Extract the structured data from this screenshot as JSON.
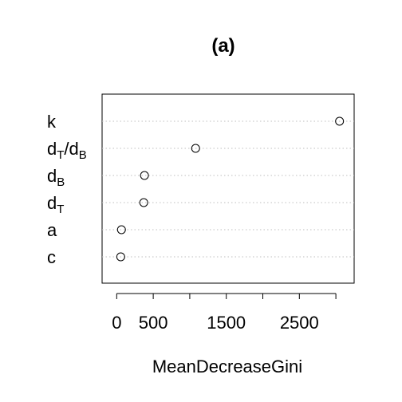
{
  "chart_data": {
    "type": "scatter",
    "subtype": "dotchart",
    "title": "(a)",
    "xlabel": "MeanDecreaseGini",
    "ylabel": "",
    "xlim": [
      -200,
      3250
    ],
    "xticks": [
      0,
      500,
      1000,
      1500,
      2000,
      2500,
      3000
    ],
    "xtick_labels": [
      "0",
      "500",
      "",
      "1500",
      "",
      "2500",
      ""
    ],
    "grid": "dotted horizontal guide lines",
    "marker": "open circle",
    "categories": [
      {
        "main": "k",
        "sub": ""
      },
      {
        "main": "d",
        "sub": "T",
        "main2": "d",
        "sub2": "B",
        "sep": "/"
      },
      {
        "main": "d",
        "sub": "B"
      },
      {
        "main": "d",
        "sub": "T"
      },
      {
        "main": "a",
        "sub": ""
      },
      {
        "main": "c",
        "sub": ""
      }
    ],
    "values": [
      3050,
      1080,
      380,
      370,
      65,
      55
    ]
  }
}
